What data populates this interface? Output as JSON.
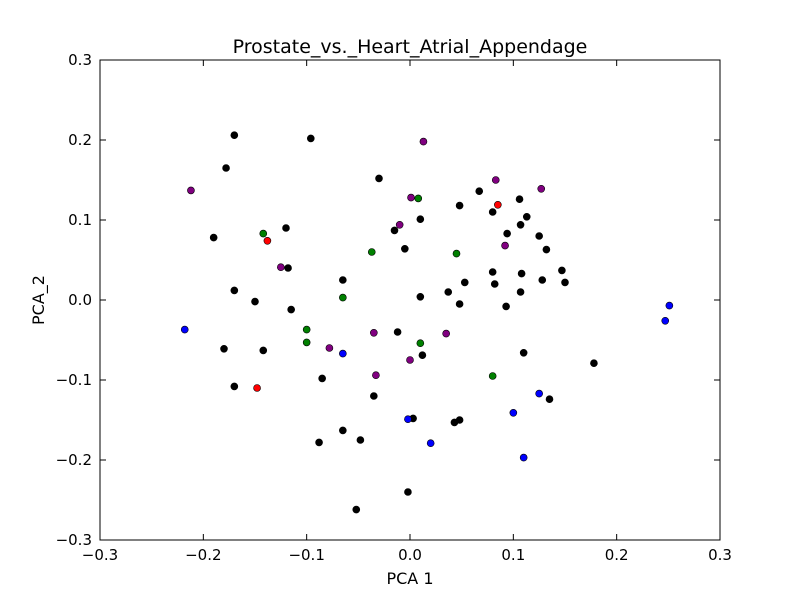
{
  "chart_data": {
    "type": "scatter",
    "title": "Prostate_vs._Heart_Atrial_Appendage",
    "xlabel": "PCA 1",
    "ylabel": "PCA_2",
    "xlim": [
      -0.3,
      0.3
    ],
    "ylim": [
      -0.3,
      0.3
    ],
    "xticks": [
      -0.3,
      -0.2,
      -0.1,
      0.0,
      0.1,
      0.2,
      0.3
    ],
    "yticks": [
      -0.3,
      -0.2,
      -0.1,
      0.0,
      0.1,
      0.2,
      0.3
    ],
    "xtick_labels": [
      "−0.3",
      "−0.2",
      "−0.1",
      "0.0",
      "0.1",
      "0.2",
      "0.3"
    ],
    "ytick_labels": [
      "−0.3",
      "−0.2",
      "−0.1",
      "0.0",
      "0.1",
      "0.2",
      "0.3"
    ],
    "grid": false,
    "legend": false,
    "series": [
      {
        "color": "#000000",
        "points": [
          [
            -0.17,
            0.206
          ],
          [
            -0.096,
            0.202
          ],
          [
            -0.178,
            0.165
          ],
          [
            -0.03,
            0.152
          ],
          [
            -0.19,
            0.078
          ],
          [
            -0.12,
            0.09
          ],
          [
            -0.118,
            0.04
          ],
          [
            -0.17,
            0.012
          ],
          [
            -0.15,
            -0.002
          ],
          [
            -0.115,
            -0.012
          ],
          [
            -0.18,
            -0.061
          ],
          [
            -0.142,
            -0.063
          ],
          [
            -0.17,
            -0.108
          ],
          [
            -0.085,
            -0.098
          ],
          [
            -0.065,
            0.025
          ],
          [
            -0.035,
            -0.12
          ],
          [
            -0.065,
            -0.163
          ],
          [
            -0.088,
            -0.178
          ],
          [
            -0.048,
            -0.175
          ],
          [
            -0.052,
            -0.262
          ],
          [
            -0.002,
            -0.24
          ],
          [
            0.003,
            -0.148
          ],
          [
            0.043,
            -0.153
          ],
          [
            0.048,
            -0.15
          ],
          [
            -0.012,
            -0.04
          ],
          [
            0.012,
            -0.069
          ],
          [
            -0.005,
            0.064
          ],
          [
            -0.015,
            0.087
          ],
          [
            0.01,
            0.101
          ],
          [
            0.048,
            0.118
          ],
          [
            0.067,
            0.136
          ],
          [
            0.01,
            0.004
          ],
          [
            0.037,
            0.01
          ],
          [
            0.053,
            0.022
          ],
          [
            0.048,
            -0.005
          ],
          [
            0.08,
            0.11
          ],
          [
            0.094,
            0.083
          ],
          [
            0.08,
            0.035
          ],
          [
            0.082,
            0.02
          ],
          [
            0.093,
            -0.008
          ],
          [
            0.106,
            0.126
          ],
          [
            0.107,
            0.094
          ],
          [
            0.113,
            0.104
          ],
          [
            0.125,
            0.08
          ],
          [
            0.132,
            0.063
          ],
          [
            0.108,
            0.033
          ],
          [
            0.107,
            0.01
          ],
          [
            0.128,
            0.025
          ],
          [
            0.147,
            0.037
          ],
          [
            0.15,
            0.022
          ],
          [
            0.11,
            -0.066
          ],
          [
            0.135,
            -0.124
          ],
          [
            0.178,
            -0.079
          ]
        ]
      },
      {
        "color": "#800080",
        "points": [
          [
            -0.212,
            0.137
          ],
          [
            0.013,
            0.198
          ],
          [
            0.001,
            0.128
          ],
          [
            0.083,
            0.15
          ],
          [
            0.127,
            0.139
          ],
          [
            -0.01,
            0.094
          ],
          [
            -0.125,
            0.041
          ],
          [
            0.092,
            0.068
          ],
          [
            -0.035,
            -0.041
          ],
          [
            0.035,
            -0.042
          ],
          [
            -0.078,
            -0.06
          ],
          [
            0.0,
            -0.075
          ],
          [
            -0.033,
            -0.094
          ]
        ]
      },
      {
        "color": "#008000",
        "points": [
          [
            0.008,
            0.127
          ],
          [
            -0.142,
            0.083
          ],
          [
            -0.037,
            0.06
          ],
          [
            0.045,
            0.058
          ],
          [
            -0.065,
            0.003
          ],
          [
            -0.1,
            -0.037
          ],
          [
            -0.1,
            -0.053
          ],
          [
            0.01,
            -0.054
          ],
          [
            0.08,
            -0.095
          ]
        ]
      },
      {
        "color": "#ff0000",
        "points": [
          [
            0.085,
            0.119
          ],
          [
            -0.138,
            0.074
          ],
          [
            -0.148,
            -0.11
          ]
        ]
      },
      {
        "color": "#0000ff",
        "points": [
          [
            -0.218,
            -0.037
          ],
          [
            -0.065,
            -0.067
          ],
          [
            -0.002,
            -0.149
          ],
          [
            0.02,
            -0.179
          ],
          [
            0.1,
            -0.141
          ],
          [
            0.125,
            -0.117
          ],
          [
            0.11,
            -0.197
          ],
          [
            0.251,
            -0.007
          ],
          [
            0.247,
            -0.026
          ]
        ]
      }
    ]
  }
}
